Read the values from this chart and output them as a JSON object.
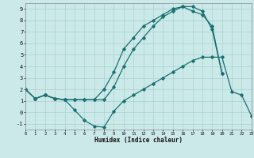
{
  "xlabel": "Humidex (Indice chaleur)",
  "xlim": [
    0,
    23
  ],
  "ylim": [
    -1.5,
    9.5
  ],
  "xticks": [
    0,
    1,
    2,
    3,
    4,
    5,
    6,
    7,
    8,
    9,
    10,
    11,
    12,
    13,
    14,
    15,
    16,
    17,
    18,
    19,
    20,
    21,
    22,
    23
  ],
  "yticks": [
    -1,
    0,
    1,
    2,
    3,
    4,
    5,
    6,
    7,
    8,
    9
  ],
  "background_color": "#cce9e9",
  "grid_color": "#aad0d0",
  "line_color": "#1a7070",
  "line1_x": [
    0,
    1,
    2,
    3,
    4,
    5,
    6,
    7,
    8,
    9,
    10,
    11,
    12,
    13,
    14,
    15,
    16,
    17,
    18,
    19,
    20
  ],
  "line1_y": [
    2.0,
    1.2,
    1.5,
    1.2,
    1.1,
    1.1,
    1.1,
    1.1,
    1.1,
    2.2,
    4.0,
    5.5,
    6.5,
    7.5,
    8.3,
    8.8,
    9.2,
    9.2,
    8.8,
    7.2,
    3.4
  ],
  "line2_x": [
    0,
    1,
    2,
    3,
    4,
    5,
    6,
    7,
    8,
    9,
    10,
    11,
    12,
    13,
    14,
    15,
    16,
    17,
    18,
    19,
    20,
    21,
    22,
    23
  ],
  "line2_y": [
    2.0,
    1.2,
    1.5,
    1.2,
    1.1,
    0.2,
    -0.7,
    -1.2,
    -1.3,
    0.1,
    1.0,
    1.5,
    2.0,
    2.5,
    3.0,
    3.5,
    4.0,
    4.5,
    4.8,
    4.8,
    4.8,
    1.8,
    1.5,
    -0.3
  ],
  "line3_x": [
    0,
    1,
    2,
    3,
    4,
    5,
    6,
    7,
    8,
    9,
    10,
    11,
    12,
    13,
    14,
    15,
    16,
    17,
    18,
    19,
    20
  ],
  "line3_y": [
    2.0,
    1.2,
    1.5,
    1.2,
    1.1,
    1.1,
    1.1,
    1.1,
    2.0,
    3.5,
    5.5,
    6.5,
    7.5,
    8.0,
    8.5,
    9.0,
    9.2,
    8.8,
    8.5,
    7.5,
    3.4
  ]
}
